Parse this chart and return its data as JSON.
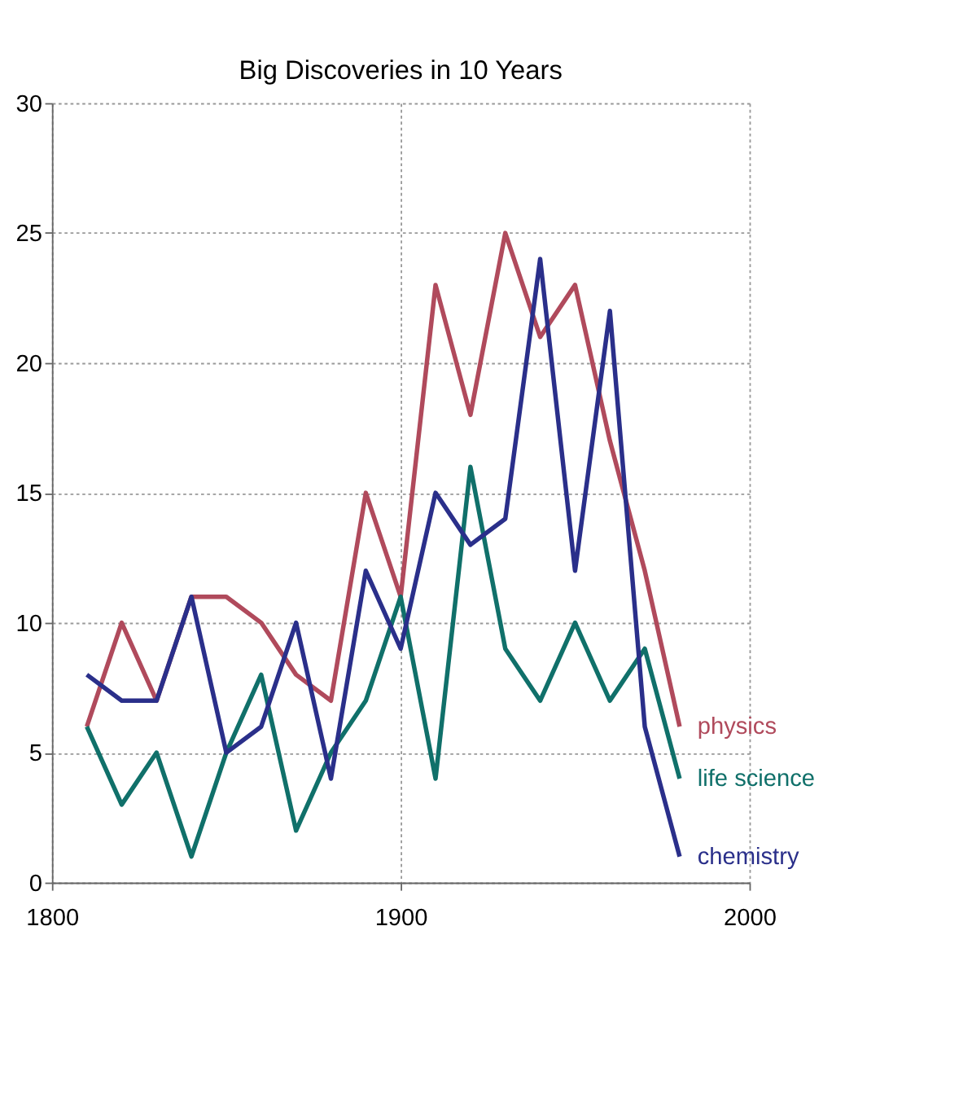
{
  "chart_data": {
    "type": "line",
    "title": "Big Discoveries in 10 Years",
    "x": [
      1810,
      1820,
      1830,
      1840,
      1850,
      1860,
      1870,
      1880,
      1890,
      1900,
      1910,
      1920,
      1930,
      1940,
      1950,
      1960,
      1970,
      1980
    ],
    "series": [
      {
        "name": "physics",
        "color": "#b04a5c",
        "values": [
          6,
          10,
          7,
          11,
          11,
          10,
          8,
          7,
          15,
          11,
          23,
          18,
          25,
          21,
          23,
          17,
          12,
          6
        ]
      },
      {
        "name": "life science",
        "color": "#10706a",
        "values": [
          6,
          3,
          5,
          1,
          5,
          8,
          2,
          5,
          7,
          11,
          4,
          16,
          9,
          7,
          10,
          7,
          9,
          4
        ]
      },
      {
        "name": "chemistry",
        "color": "#2a2f8a",
        "values": [
          8,
          7,
          7,
          11,
          5,
          6,
          10,
          4,
          12,
          9,
          15,
          13,
          14,
          24,
          12,
          22,
          6,
          1
        ]
      }
    ],
    "xlim": [
      1800,
      2000
    ],
    "xticks": [
      1800,
      1900,
      2000
    ],
    "ylim": [
      0,
      30
    ],
    "yticks": [
      0,
      5,
      10,
      15,
      20,
      25,
      30
    ],
    "grid": true,
    "marker": "none",
    "line_style": "solid"
  }
}
